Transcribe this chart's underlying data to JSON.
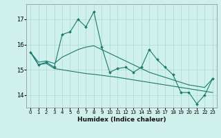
{
  "xlabel": "Humidex (Indice chaleur)",
  "ylabel": "",
  "x": [
    0,
    1,
    2,
    3,
    4,
    5,
    6,
    7,
    8,
    9,
    10,
    11,
    12,
    13,
    14,
    15,
    16,
    17,
    18,
    19,
    20,
    21,
    22,
    23
  ],
  "y_main": [
    15.7,
    15.2,
    15.3,
    15.1,
    16.4,
    16.5,
    17.0,
    16.7,
    17.3,
    15.9,
    14.9,
    15.05,
    15.1,
    14.9,
    15.1,
    15.8,
    15.4,
    15.1,
    14.8,
    14.1,
    14.1,
    13.65,
    14.0,
    14.65
  ],
  "y_upper": [
    15.7,
    15.3,
    15.35,
    15.25,
    15.5,
    15.65,
    15.8,
    15.9,
    15.95,
    15.8,
    15.65,
    15.5,
    15.35,
    15.2,
    15.05,
    14.9,
    14.8,
    14.7,
    14.6,
    14.5,
    14.4,
    14.35,
    14.3,
    14.65
  ],
  "y_lower": [
    15.7,
    15.2,
    15.25,
    15.05,
    15.0,
    14.95,
    14.9,
    14.85,
    14.82,
    14.78,
    14.74,
    14.7,
    14.65,
    14.6,
    14.55,
    14.5,
    14.45,
    14.4,
    14.35,
    14.3,
    14.25,
    14.2,
    14.15,
    14.1
  ],
  "line_color": "#1a7a6e",
  "bg_color": "#cff0eb",
  "grid_color": "#aad8d3",
  "ylim": [
    13.5,
    17.6
  ],
  "yticks": [
    14,
    15,
    16,
    17
  ],
  "xticks": [
    0,
    1,
    2,
    3,
    4,
    5,
    6,
    7,
    8,
    9,
    10,
    11,
    12,
    13,
    14,
    15,
    16,
    17,
    18,
    19,
    20,
    21,
    22,
    23
  ]
}
